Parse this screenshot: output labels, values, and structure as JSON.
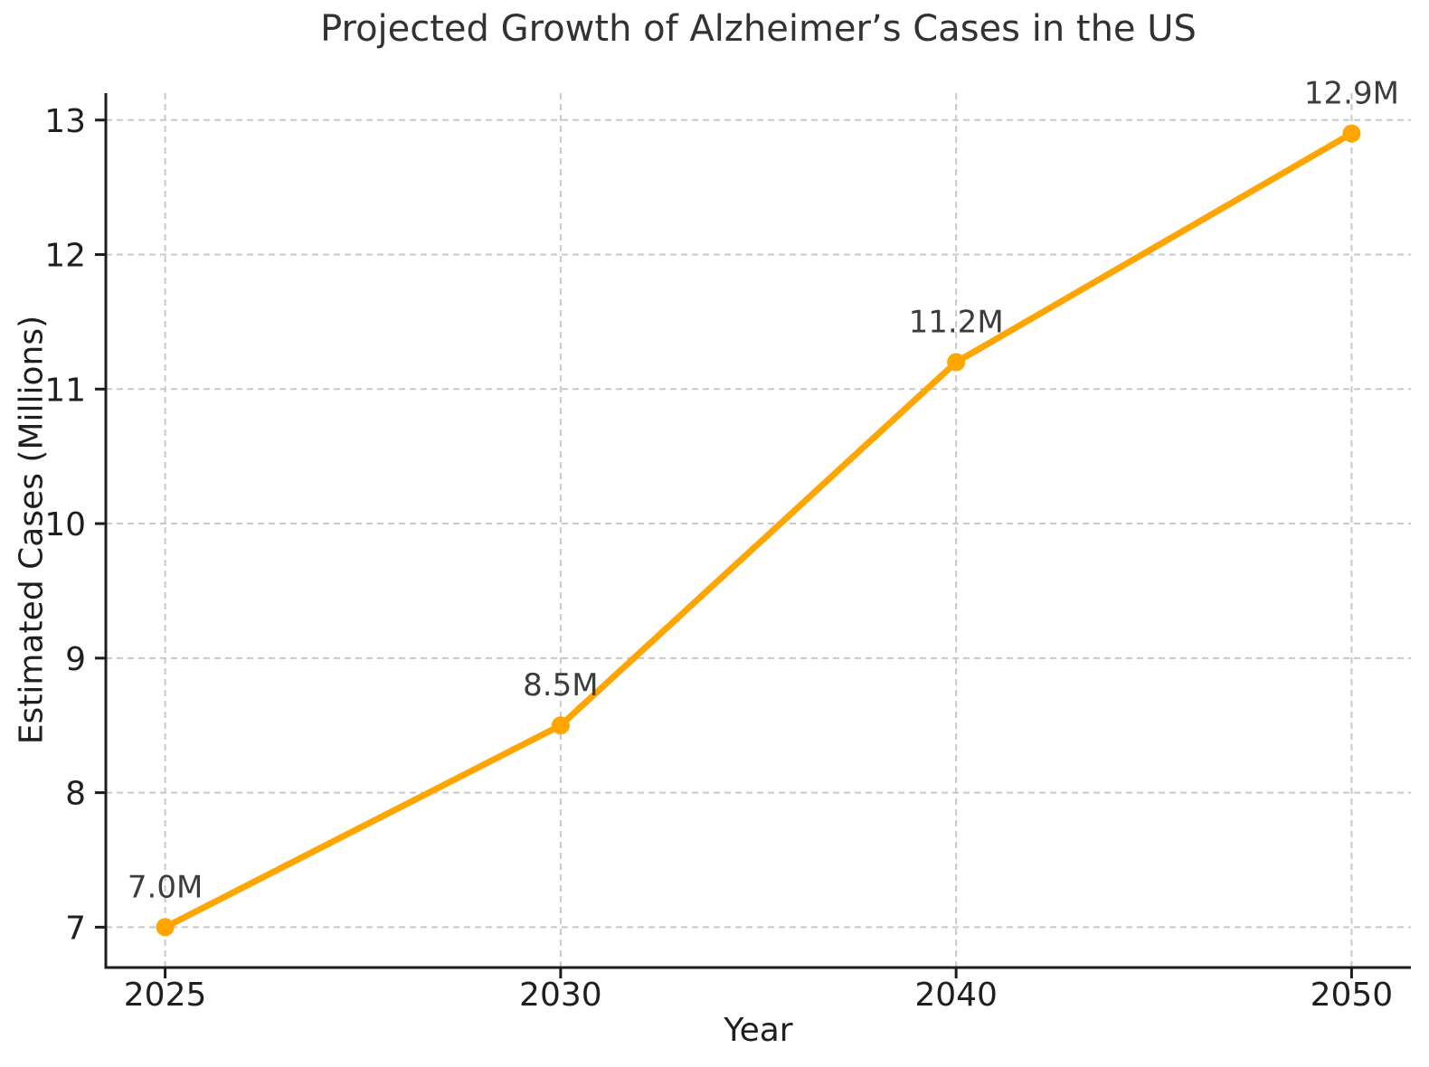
{
  "chart_data": {
    "type": "line",
    "title": "Projected Growth of Alzheimer’s Cases in the US",
    "xlabel": "Year",
    "ylabel": "Estimated Cases (Millions)",
    "categories": [
      "2025",
      "2030",
      "2040",
      "2050"
    ],
    "values": [
      7.0,
      8.5,
      11.2,
      12.9
    ],
    "point_labels": [
      "7.0M",
      "8.5M",
      "11.2M",
      "12.9M"
    ],
    "yticks": [
      "7",
      "8",
      "9",
      "10",
      "11",
      "12",
      "13"
    ],
    "ytick_values": [
      7,
      8,
      9,
      10,
      11,
      12,
      13
    ],
    "ylim": [
      6.7,
      13.2
    ],
    "grid": true,
    "grid_style": "dashed",
    "legend_position": "none",
    "colors": {
      "line": "#FFA500",
      "marker": "#FFA500",
      "grid": "#c8c8c8",
      "axis": "#1c1c1c",
      "tick_text": "#1f1f1f",
      "title_text": "#323232",
      "annotation_text": "#3c3c3c",
      "background": "#ffffff"
    }
  }
}
